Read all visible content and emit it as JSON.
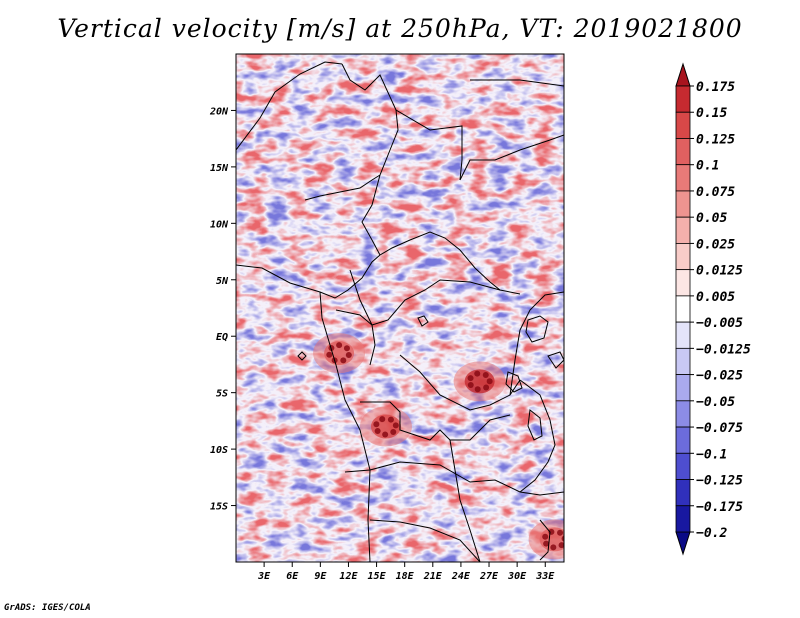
{
  "chart_data": {
    "type": "heatmap",
    "title": "Vertical velocity [m/s] at 250hPa, VT: 2019021800",
    "variable": "Vertical velocity",
    "units": "m/s",
    "level": "250hPa",
    "valid_time": "2019021800",
    "xlabel": "",
    "ylabel": "",
    "lon_range": [
      0,
      35
    ],
    "lat_range": [
      -20,
      25
    ],
    "x_ticks": [
      "3E",
      "6E",
      "9E",
      "12E",
      "15E",
      "18E",
      "21E",
      "24E",
      "27E",
      "30E",
      "33E"
    ],
    "x_tick_values": [
      3,
      6,
      9,
      12,
      15,
      18,
      21,
      24,
      27,
      30,
      33
    ],
    "y_ticks": [
      "20N",
      "15N",
      "10N",
      "5N",
      "EQ",
      "5S",
      "10S",
      "15S"
    ],
    "y_tick_values": [
      20,
      15,
      10,
      5,
      0,
      -5,
      -10,
      -15
    ],
    "colorbar": {
      "labels": [
        "0.175",
        "0.15",
        "0.125",
        "0.1",
        "0.075",
        "0.05",
        "0.025",
        "0.0125",
        "0.005",
        "−0.005",
        "−0.0125",
        "−0.025",
        "−0.05",
        "−0.075",
        "−0.1",
        "−0.125",
        "−0.175",
        "−0.2"
      ],
      "colors": [
        "#a8141e",
        "#c62a30",
        "#d84848",
        "#e06060",
        "#e87a78",
        "#ee9490",
        "#f4b0ac",
        "#f8ccc8",
        "#fce6e4",
        "#ffffff",
        "#e4e4fa",
        "#c8c8f4",
        "#aaaaee",
        "#8c8ce6",
        "#6c6cdc",
        "#4e4ed0",
        "#3030bc",
        "#1818a0",
        "#0a0a86"
      ],
      "extend": "both"
    },
    "highlights": [
      {
        "lon": 26,
        "lat": -4,
        "value": 0.175,
        "note": "strong ascent cluster"
      },
      {
        "lon": 16,
        "lat": -8,
        "value": 0.15,
        "note": "ascent cluster"
      },
      {
        "lon": 11,
        "lat": -1.5,
        "value": 0.125,
        "note": "ascent cluster"
      },
      {
        "lon": 34,
        "lat": -18,
        "value": 0.125,
        "note": "ascent near Mozambique"
      }
    ]
  },
  "credit": "GrADS: IGES/COLA"
}
